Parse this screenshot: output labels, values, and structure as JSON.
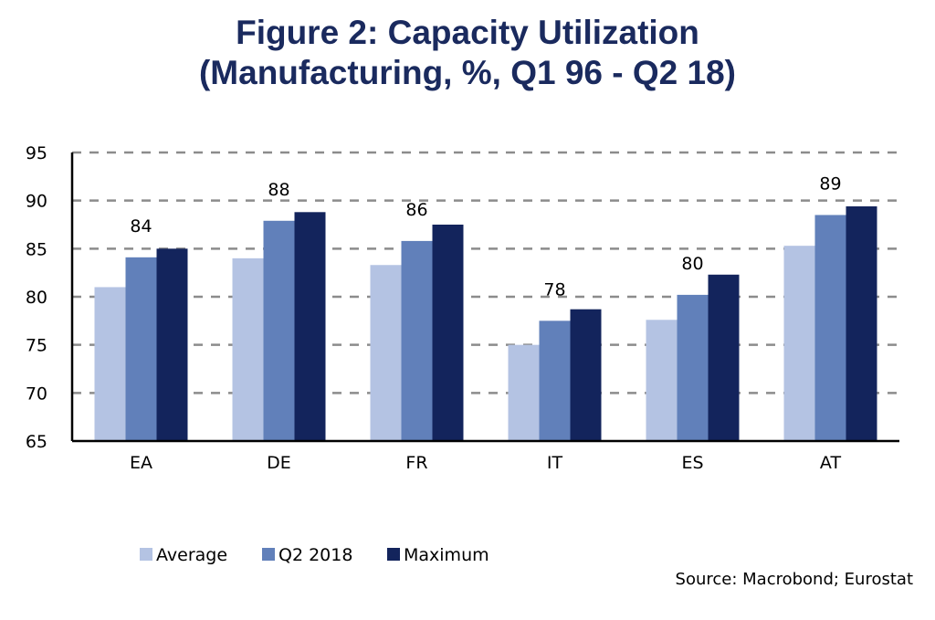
{
  "chart_data": {
    "type": "bar",
    "title": "Figure 2: Capacity Utilization",
    "subtitle": "(Manufacturing, %, Q1 96 - Q2 18)",
    "xlabel": "",
    "ylabel": "",
    "ylim": [
      65,
      95
    ],
    "yticks": [
      65,
      70,
      75,
      80,
      85,
      90,
      95
    ],
    "grid": true,
    "legend_position": "bottom-left",
    "categories": [
      "EA",
      "DE",
      "FR",
      "IT",
      "ES",
      "AT"
    ],
    "series": [
      {
        "name": "Average",
        "color": "#b4c3e3",
        "values": [
          81.0,
          84.0,
          83.3,
          75.0,
          77.6,
          85.3
        ]
      },
      {
        "name": "Q2 2018",
        "color": "#6180ba",
        "values": [
          84.1,
          87.9,
          85.8,
          77.5,
          80.2,
          88.5
        ]
      },
      {
        "name": "Maximum",
        "color": "#13245c",
        "values": [
          85.0,
          88.8,
          87.5,
          78.7,
          82.3,
          89.4
        ]
      }
    ],
    "data_labels": [
      "84",
      "88",
      "86",
      "78",
      "80",
      "89"
    ],
    "source": "Source: Macrobond; Eurostat"
  }
}
